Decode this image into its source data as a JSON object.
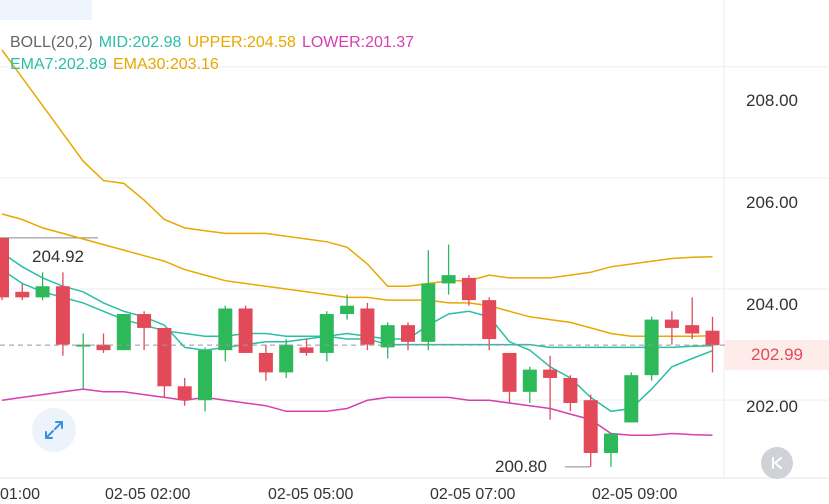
{
  "legend": {
    "boll": {
      "label": "BOLL(20,2)",
      "color": "#666666"
    },
    "mid": {
      "label": "MID:202.98",
      "color": "#2bbfa5"
    },
    "upper": {
      "label": "UPPER:204.58",
      "color": "#e8a800"
    },
    "lower": {
      "label": "LOWER:201.37",
      "color": "#d63fae"
    },
    "ema7": {
      "label": "EMA7:202.89",
      "color": "#2bbfa5"
    },
    "ema30": {
      "label": "EMA30:203.16",
      "color": "#e8a800"
    }
  },
  "price_axis": {
    "labels": [
      "208.00",
      "206.00",
      "204.00",
      "202.00"
    ]
  },
  "last_price": "202.99",
  "high_marker": "204.92",
  "low_marker": "200.80",
  "time_axis_labels": [
    "01:00",
    "02-05 02:00",
    "02-05 05:00",
    "02-05 07:00",
    "02-05 09:00"
  ],
  "colors": {
    "up": "#2db85a",
    "down": "#e24a5a",
    "grid": "#eeeeee"
  },
  "icons": {
    "zoom": "expand-arrows-icon",
    "scroll_end": "chevron-left-icon"
  },
  "chart_data": {
    "type": "candlestick",
    "y_range": [
      200.6,
      209.2
    ],
    "candles": [
      {
        "o": 204.92,
        "h": 204.92,
        "l": 203.8,
        "c": 203.85
      },
      {
        "o": 203.95,
        "h": 204.1,
        "l": 203.8,
        "c": 203.85
      },
      {
        "o": 203.85,
        "h": 204.3,
        "l": 203.8,
        "c": 204.05
      },
      {
        "o": 204.05,
        "h": 204.3,
        "l": 202.8,
        "c": 203.0
      },
      {
        "o": 203.0,
        "h": 203.2,
        "l": 202.2,
        "c": 203.0
      },
      {
        "o": 203.0,
        "h": 203.2,
        "l": 202.85,
        "c": 202.9
      },
      {
        "o": 202.9,
        "h": 203.55,
        "l": 202.9,
        "c": 203.55
      },
      {
        "o": 203.55,
        "h": 203.6,
        "l": 202.9,
        "c": 203.3
      },
      {
        "o": 203.3,
        "h": 203.3,
        "l": 202.05,
        "c": 202.25
      },
      {
        "o": 202.25,
        "h": 202.4,
        "l": 201.9,
        "c": 202.0
      },
      {
        "o": 202.0,
        "h": 202.95,
        "l": 201.8,
        "c": 202.9
      },
      {
        "o": 202.9,
        "h": 203.7,
        "l": 202.7,
        "c": 203.65
      },
      {
        "o": 203.65,
        "h": 203.7,
        "l": 202.85,
        "c": 202.85
      },
      {
        "o": 202.85,
        "h": 203.0,
        "l": 202.35,
        "c": 202.5
      },
      {
        "o": 202.5,
        "h": 203.1,
        "l": 202.4,
        "c": 203.0
      },
      {
        "o": 202.95,
        "h": 203.1,
        "l": 202.8,
        "c": 202.85
      },
      {
        "o": 202.85,
        "h": 203.6,
        "l": 202.7,
        "c": 203.55
      },
      {
        "o": 203.55,
        "h": 203.9,
        "l": 203.45,
        "c": 203.7
      },
      {
        "o": 203.65,
        "h": 203.75,
        "l": 202.9,
        "c": 203.0
      },
      {
        "o": 202.95,
        "h": 203.4,
        "l": 202.75,
        "c": 203.35
      },
      {
        "o": 203.35,
        "h": 203.4,
        "l": 202.9,
        "c": 203.05
      },
      {
        "o": 203.05,
        "h": 204.7,
        "l": 202.9,
        "c": 204.1
      },
      {
        "o": 204.1,
        "h": 204.8,
        "l": 203.9,
        "c": 204.25
      },
      {
        "o": 204.2,
        "h": 204.25,
        "l": 203.7,
        "c": 203.8
      },
      {
        "o": 203.8,
        "h": 203.85,
        "l": 202.9,
        "c": 203.1
      },
      {
        "o": 202.85,
        "h": 202.85,
        "l": 201.95,
        "c": 202.15
      },
      {
        "o": 202.15,
        "h": 202.6,
        "l": 201.95,
        "c": 202.55
      },
      {
        "o": 202.55,
        "h": 202.8,
        "l": 201.65,
        "c": 202.4
      },
      {
        "o": 202.4,
        "h": 202.45,
        "l": 201.8,
        "c": 201.95
      },
      {
        "o": 202.0,
        "h": 202.1,
        "l": 200.8,
        "c": 201.05
      },
      {
        "o": 201.05,
        "h": 201.4,
        "l": 200.8,
        "c": 201.4
      },
      {
        "o": 201.6,
        "h": 202.5,
        "l": 201.6,
        "c": 202.45
      },
      {
        "o": 202.45,
        "h": 203.5,
        "l": 202.35,
        "c": 203.45
      },
      {
        "o": 203.45,
        "h": 203.6,
        "l": 203.0,
        "c": 203.3
      },
      {
        "o": 203.35,
        "h": 203.85,
        "l": 203.1,
        "c": 203.2
      },
      {
        "o": 203.25,
        "h": 203.5,
        "l": 202.5,
        "c": 202.99
      }
    ],
    "ema7": [
      204.65,
      204.4,
      204.2,
      204.05,
      203.95,
      203.75,
      203.6,
      203.5,
      203.35,
      202.95,
      202.9,
      202.95,
      203.0,
      203.05,
      203.05,
      203.1,
      203.15,
      203.2,
      203.15,
      203.1,
      203.1,
      203.35,
      203.55,
      203.6,
      203.5,
      203.05,
      202.9,
      202.6,
      202.4,
      202.05,
      201.8,
      201.85,
      202.2,
      202.6,
      202.75,
      202.89
    ],
    "ema30": [
      205.35,
      205.25,
      205.1,
      205.0,
      204.9,
      204.8,
      204.7,
      204.6,
      204.5,
      204.35,
      204.25,
      204.15,
      204.1,
      204.05,
      204.0,
      203.95,
      203.9,
      203.85,
      203.85,
      203.8,
      203.8,
      203.8,
      203.75,
      203.75,
      203.7,
      203.6,
      203.5,
      203.45,
      203.4,
      203.3,
      203.2,
      203.15,
      203.15,
      203.15,
      203.15,
      203.16
    ],
    "upper": [
      208.3,
      207.8,
      207.3,
      206.8,
      206.3,
      205.95,
      205.9,
      205.6,
      205.25,
      205.1,
      205.05,
      205.0,
      205.0,
      205.0,
      204.95,
      204.9,
      204.85,
      204.75,
      204.45,
      204.05,
      204.05,
      204.1,
      204.15,
      204.15,
      204.25,
      204.2,
      204.2,
      204.2,
      204.25,
      204.3,
      204.4,
      204.45,
      204.5,
      204.55,
      204.57,
      204.58
    ],
    "mid": [
      204.35,
      204.1,
      203.95,
      203.85,
      203.75,
      203.6,
      203.45,
      203.35,
      203.25,
      203.2,
      203.15,
      203.15,
      203.2,
      203.2,
      203.15,
      203.15,
      203.15,
      203.1,
      203.1,
      203.0,
      203.0,
      203.0,
      203.0,
      203.0,
      203.0,
      203.0,
      203.0,
      202.95,
      202.95,
      202.95,
      202.95,
      202.95,
      202.95,
      202.95,
      202.97,
      202.98
    ],
    "lower": [
      202.0,
      202.05,
      202.1,
      202.15,
      202.2,
      202.15,
      202.15,
      202.1,
      202.05,
      202.0,
      202.05,
      202.0,
      201.95,
      201.9,
      201.8,
      201.8,
      201.8,
      201.85,
      202.0,
      202.05,
      202.05,
      202.05,
      202.05,
      202.0,
      202.0,
      201.95,
      201.9,
      201.85,
      201.75,
      201.65,
      201.4,
      201.37,
      201.37,
      201.4,
      201.38,
      201.37
    ]
  }
}
